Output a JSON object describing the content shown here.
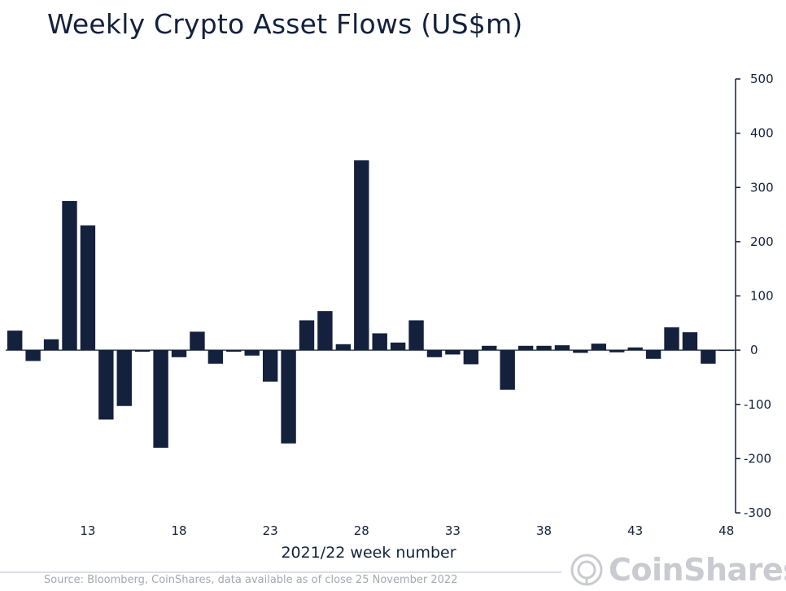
{
  "chart_data": {
    "type": "bar",
    "title": "Weekly Crypto Asset Flows (US$m)",
    "xlabel": "2021/22 week number",
    "ylabel": "",
    "ylim": [
      -300,
      500
    ],
    "yticks": [
      500,
      400,
      300,
      200,
      100,
      0,
      -100,
      -200,
      -300
    ],
    "xtick_labels": [
      "13",
      "18",
      "23",
      "28",
      "33",
      "38",
      "43",
      "48"
    ],
    "y_axis_position": "right",
    "grid": false,
    "bar_color": "#13213d",
    "categories": [
      "9",
      "10",
      "11",
      "12",
      "13",
      "14",
      "15",
      "16",
      "17",
      "18",
      "19",
      "20",
      "21",
      "22",
      "23",
      "24",
      "25",
      "26",
      "27",
      "28",
      "29",
      "30",
      "31",
      "32",
      "33",
      "34",
      "35",
      "36",
      "37",
      "38",
      "39",
      "40",
      "41",
      "42",
      "43",
      "44",
      "45",
      "46",
      "47",
      "48"
    ],
    "values": [
      36,
      -20,
      20,
      275,
      230,
      -128,
      -103,
      -3,
      -180,
      -13,
      34,
      -25,
      -3,
      -10,
      -58,
      -172,
      55,
      72,
      11,
      350,
      31,
      14,
      55,
      -13,
      -8,
      -26,
      8,
      -73,
      8,
      8,
      9,
      -5,
      12,
      -4,
      5,
      -16,
      42,
      33,
      -25,
      0
    ]
  },
  "footer": {
    "source": "Source: Bloomberg, CoinShares, data available as of close 25 November 2022",
    "brand": "CoinShares"
  }
}
